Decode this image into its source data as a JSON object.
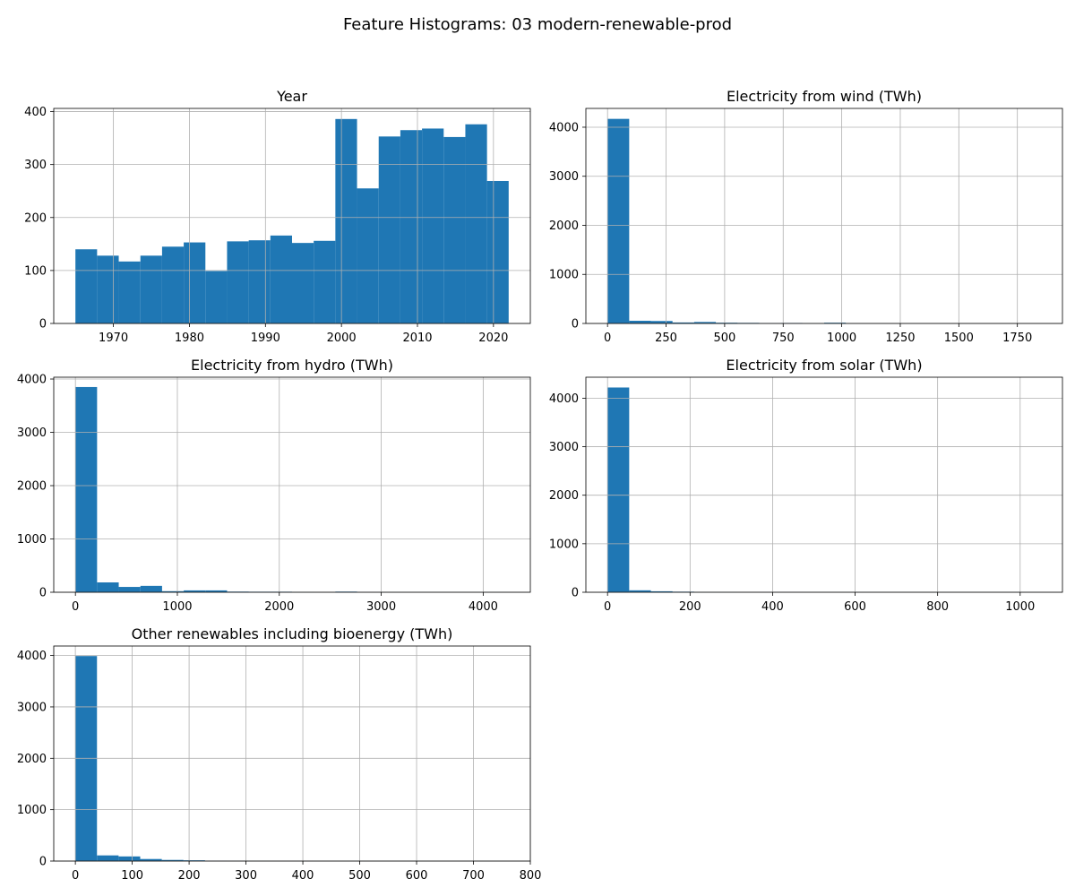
{
  "figure": {
    "title": "Feature Histograms: 03 modern-renewable-prod"
  },
  "colors": {
    "bar": "#1f77b4",
    "grid": "#b0b0b0",
    "axis": "#000000"
  },
  "chart_data": [
    {
      "type": "bar",
      "title": "Year",
      "grid": true,
      "xlim": [
        1962.15,
        2024.85
      ],
      "ylim": [
        0,
        406
      ],
      "xticks": [
        1970,
        1980,
        1990,
        2000,
        2010,
        2020
      ],
      "xtick_labels": [
        "1970",
        "1980",
        "1990",
        "2000",
        "2010",
        "2020"
      ],
      "yticks": [
        0,
        100,
        200,
        300,
        400
      ],
      "ytick_labels": [
        "0",
        "100",
        "200",
        "300",
        "400"
      ],
      "bin_edges": [
        1965,
        1967.85,
        1970.7,
        1973.55,
        1976.4,
        1979.25,
        1982.1,
        1984.95,
        1987.8,
        1990.65,
        1993.5,
        1996.35,
        1999.2,
        2002.05,
        2004.9,
        2007.75,
        2010.6,
        2013.45,
        2016.3,
        2019.15,
        2022
      ],
      "values": [
        140,
        128,
        117,
        128,
        145,
        153,
        99,
        155,
        157,
        166,
        152,
        156,
        386,
        255,
        353,
        365,
        368,
        352,
        376,
        269
      ]
    },
    {
      "type": "bar",
      "title": "Electricity from wind (TWh)",
      "grid": true,
      "xlim": [
        -92.5,
        1942.5
      ],
      "ylim": [
        0,
        4383
      ],
      "xticks": [
        0,
        250,
        500,
        750,
        1000,
        1250,
        1500,
        1750
      ],
      "xtick_labels": [
        "0",
        "250",
        "500",
        "750",
        "1000",
        "1250",
        "1500",
        "1750"
      ],
      "yticks": [
        0,
        1000,
        2000,
        3000,
        4000
      ],
      "ytick_labels": [
        "0",
        "1000",
        "2000",
        "3000",
        "4000"
      ],
      "bin_edges": [
        0,
        92.5,
        185,
        277.5,
        370,
        462.5,
        555,
        647.5,
        740,
        832.5,
        925,
        1017.5,
        1110,
        1202.5,
        1295,
        1387.5,
        1480,
        1572.5,
        1665,
        1757.5,
        1850
      ],
      "values": [
        4170,
        55,
        50,
        20,
        30,
        15,
        12,
        8,
        10,
        4,
        15,
        3,
        2,
        2,
        1,
        1,
        1,
        1,
        1,
        1
      ]
    },
    {
      "type": "bar",
      "title": "Electricity from hydro (TWh)",
      "grid": true,
      "xlim": [
        -212.5,
        4462.5
      ],
      "ylim": [
        0,
        4034
      ],
      "xticks": [
        0,
        1000,
        2000,
        3000,
        4000
      ],
      "xtick_labels": [
        "0",
        "1000",
        "2000",
        "3000",
        "4000"
      ],
      "yticks": [
        0,
        1000,
        2000,
        3000,
        4000
      ],
      "ytick_labels": [
        "0",
        "1000",
        "2000",
        "3000",
        "4000"
      ],
      "bin_edges": [
        0,
        212.5,
        425,
        637.5,
        850,
        1062.5,
        1275,
        1487.5,
        1700,
        1912.5,
        2125,
        2337.5,
        2550,
        2762.5,
        2975,
        3187.5,
        3400,
        3612.5,
        3825,
        4037.5,
        4250
      ],
      "values": [
        3850,
        185,
        100,
        120,
        20,
        35,
        35,
        12,
        10,
        10,
        4,
        3,
        12,
        2,
        1,
        1,
        1,
        1,
        1,
        1
      ]
    },
    {
      "type": "bar",
      "title": "Electricity from solar (TWh)",
      "grid": true,
      "xlim": [
        -52.5,
        1102.5
      ],
      "ylim": [
        0,
        4432
      ],
      "xticks": [
        0,
        200,
        400,
        600,
        800,
        1000
      ],
      "xtick_labels": [
        "0",
        "200",
        "400",
        "600",
        "800",
        "1000"
      ],
      "yticks": [
        0,
        1000,
        2000,
        3000,
        4000
      ],
      "ytick_labels": [
        "0",
        "1000",
        "2000",
        "3000",
        "4000"
      ],
      "bin_edges": [
        0,
        52.5,
        105,
        157.5,
        210,
        262.5,
        315,
        367.5,
        420,
        472.5,
        525,
        577.5,
        630,
        682.5,
        735,
        787.5,
        840,
        892.5,
        945,
        997.5,
        1050
      ],
      "values": [
        4220,
        40,
        20,
        12,
        6,
        4,
        3,
        2,
        2,
        1,
        1,
        1,
        1,
        1,
        1,
        1,
        1,
        1,
        1,
        1
      ]
    },
    {
      "type": "bar",
      "title": "Other renewables including bioenergy (TWh)",
      "grid": true,
      "xlim": [
        -38,
        800
      ],
      "ylim": [
        0,
        4185
      ],
      "xticks": [
        0,
        100,
        200,
        300,
        400,
        500,
        600,
        700,
        800
      ],
      "xtick_labels": [
        "0",
        "100",
        "200",
        "300",
        "400",
        "500",
        "600",
        "700",
        "800"
      ],
      "yticks": [
        0,
        1000,
        2000,
        3000,
        4000
      ],
      "ytick_labels": [
        "0",
        "1000",
        "2000",
        "3000",
        "4000"
      ],
      "bin_edges": [
        0,
        38,
        76,
        114,
        152,
        190,
        228,
        266,
        304,
        342,
        380,
        418,
        456,
        494,
        532,
        570,
        608,
        646,
        684,
        722,
        760
      ],
      "values": [
        3990,
        110,
        90,
        40,
        22,
        15,
        8,
        5,
        3,
        2,
        2,
        1,
        1,
        1,
        1,
        1,
        1,
        1,
        1,
        1
      ]
    }
  ]
}
